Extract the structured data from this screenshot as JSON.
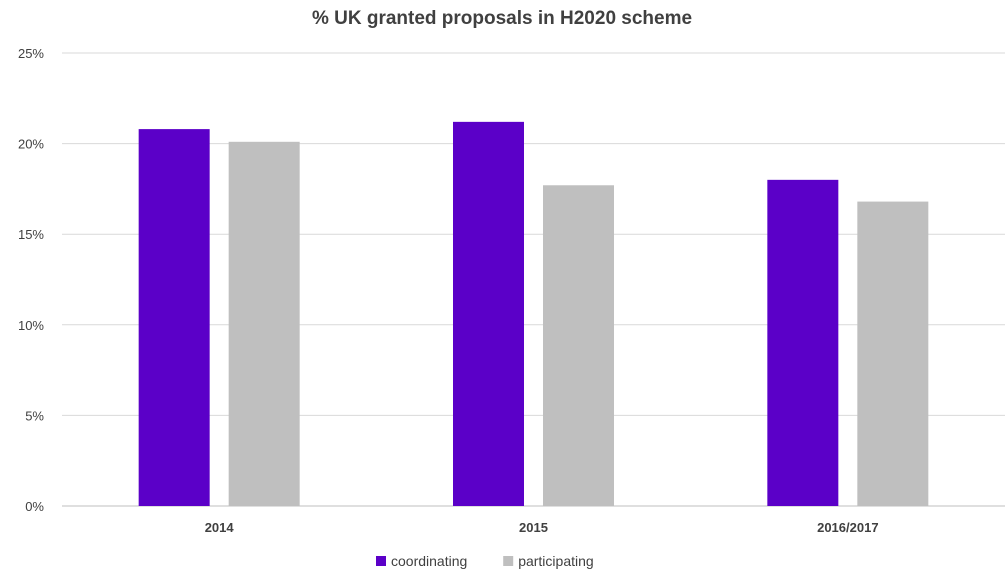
{
  "chart_data": {
    "type": "bar",
    "title": "% UK granted proposals in H2020 scheme",
    "categories": [
      "2014",
      "2015",
      "2016/2017"
    ],
    "series": [
      {
        "name": "coordinating",
        "color": "#5b00c8",
        "values": [
          20.8,
          21.2,
          18.0
        ]
      },
      {
        "name": "participating",
        "color": "#bfbfbf",
        "values": [
          20.1,
          17.7,
          16.8
        ]
      }
    ],
    "ylim": [
      0,
      25
    ],
    "yticks": [
      0,
      5,
      10,
      15,
      20,
      25
    ],
    "ytick_labels": [
      "0%",
      "5%",
      "10%",
      "15%",
      "20%",
      "25%"
    ],
    "grid": true,
    "legend_position": "bottom"
  }
}
